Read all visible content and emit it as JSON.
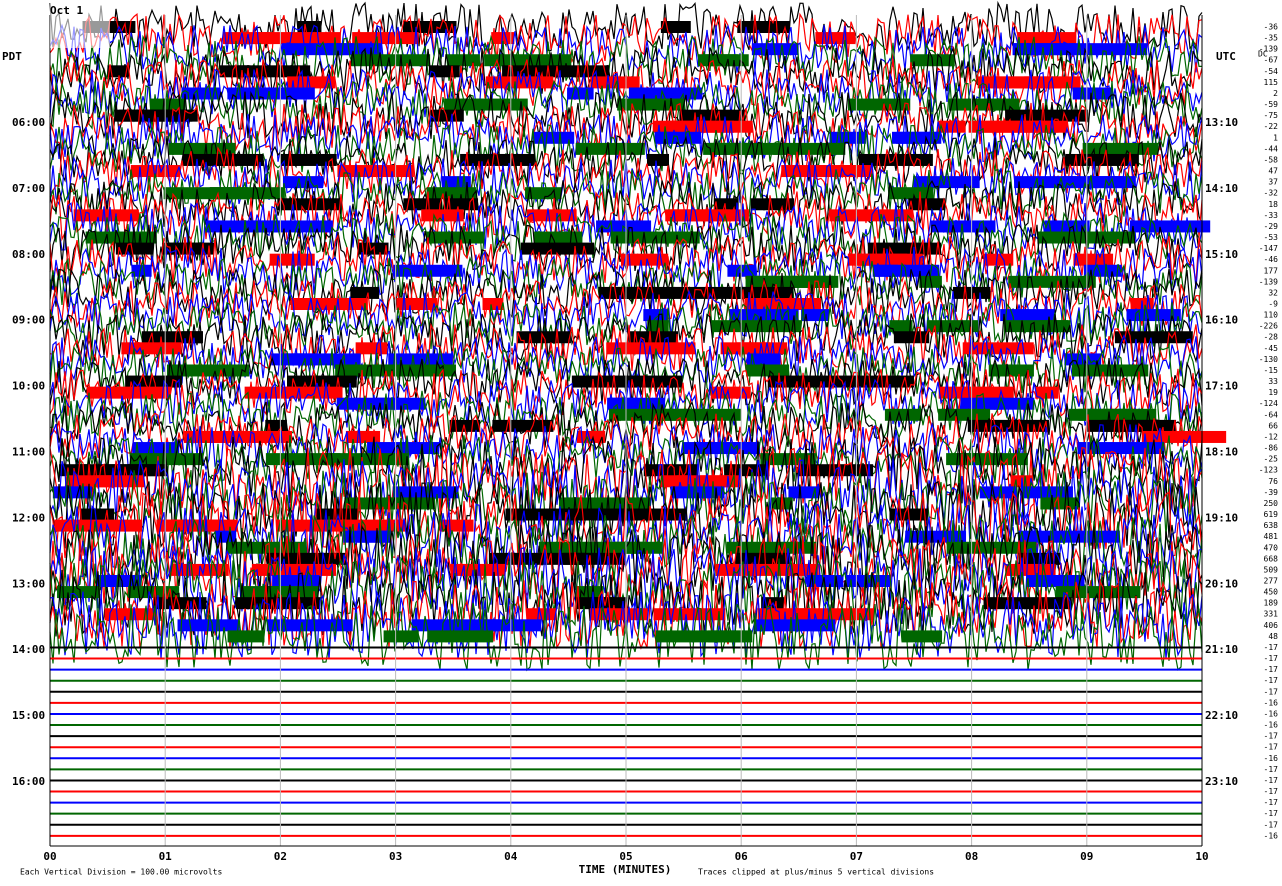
{
  "header": {
    "date": "Oct 1"
  },
  "left_title": "PDT",
  "right_title": "UTC",
  "offset_title": "DC",
  "left_times": [
    "06:00",
    "07:00",
    "08:00",
    "09:00",
    "10:00",
    "11:00",
    "12:00",
    "13:00",
    "14:00",
    "15:00",
    "16:00"
  ],
  "right_times": [
    "13:10",
    "14:10",
    "15:10",
    "16:10",
    "17:10",
    "18:10",
    "19:10",
    "20:10",
    "21:10",
    "22:10",
    "23:10"
  ],
  "x_ticks": [
    "00",
    "01",
    "02",
    "03",
    "04",
    "05",
    "06",
    "07",
    "08",
    "09",
    "10"
  ],
  "x_label": "TIME (MINUTES)",
  "scale_note": "Each Vertical Division =  100.00 microvolts",
  "clip_note": "Traces clipped at plus/minus 5 vertical divisions",
  "offsets": [
    "-36",
    "-35",
    "-139",
    "-67",
    "-54",
    "115",
    "2",
    "-59",
    "-75",
    "-22",
    "1",
    "-44",
    "-58",
    "47",
    "37",
    "-32",
    "18",
    "-33",
    "-29",
    "-53",
    "-147",
    "-46",
    "177",
    "-139",
    "32",
    "-9",
    "110",
    "-226",
    "-28",
    "-45",
    "-130",
    "-15",
    "33",
    "19",
    "-124",
    "-64",
    "66",
    "-12",
    "-86",
    "-25",
    "-123",
    "76",
    "-39",
    "250",
    "619",
    "638",
    "481",
    "470",
    "668",
    "509",
    "277",
    "450",
    "189",
    "331",
    "406",
    "48",
    "-17",
    "-17",
    "-17",
    "-17",
    "-17",
    "-16",
    "-16",
    "-16",
    "-17",
    "-17",
    "-16",
    "-17",
    "-17",
    "-17",
    "-17",
    "-17",
    "-17",
    "-16"
  ]
}
